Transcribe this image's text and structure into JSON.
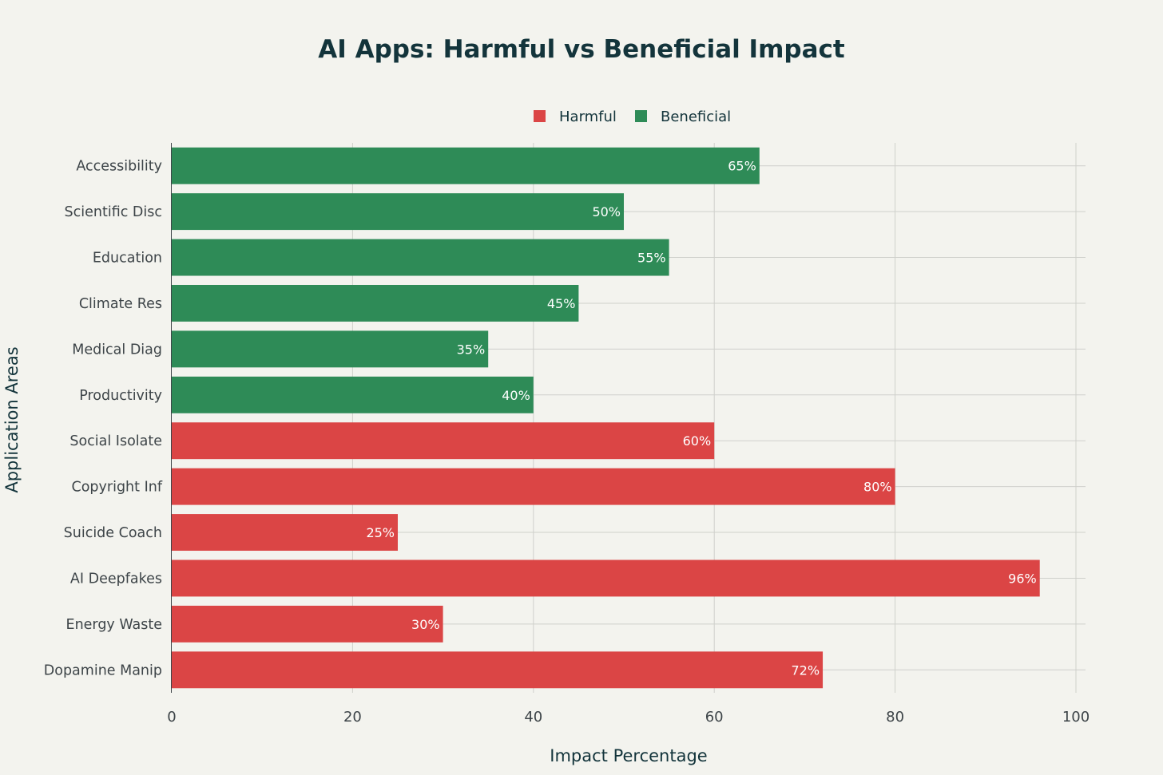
{
  "chart_data": {
    "type": "bar",
    "orientation": "horizontal",
    "title": "AI Apps: Harmful vs Beneficial Impact",
    "xlabel": "Impact Percentage",
    "ylabel": "Application Areas",
    "xlim": [
      0,
      100
    ],
    "xticks": [
      "0",
      "20",
      "40",
      "60",
      "80",
      "100"
    ],
    "grid": true,
    "legend_position": "top-center",
    "legend": [
      {
        "name": "Harmful",
        "color": "#db4545"
      },
      {
        "name": "Beneficial",
        "color": "#2e8b57"
      }
    ],
    "categories": [
      "Accessibility",
      "Scientific Disc",
      "Education",
      "Climate Res",
      "Medical Diag",
      "Productivity",
      "Social Isolate",
      "Copyright Inf",
      "Suicide Coach",
      "AI Deepfakes",
      "Energy Waste",
      "Dopamine Manip"
    ],
    "values": [
      65,
      50,
      55,
      45,
      35,
      40,
      60,
      80,
      25,
      96,
      30,
      72
    ],
    "groups": [
      "Beneficial",
      "Beneficial",
      "Beneficial",
      "Beneficial",
      "Beneficial",
      "Beneficial",
      "Harmful",
      "Harmful",
      "Harmful",
      "Harmful",
      "Harmful",
      "Harmful"
    ],
    "value_labels": [
      "65%",
      "50%",
      "55%",
      "45%",
      "35%",
      "40%",
      "60%",
      "80%",
      "25%",
      "96%",
      "30%",
      "72%"
    ]
  }
}
